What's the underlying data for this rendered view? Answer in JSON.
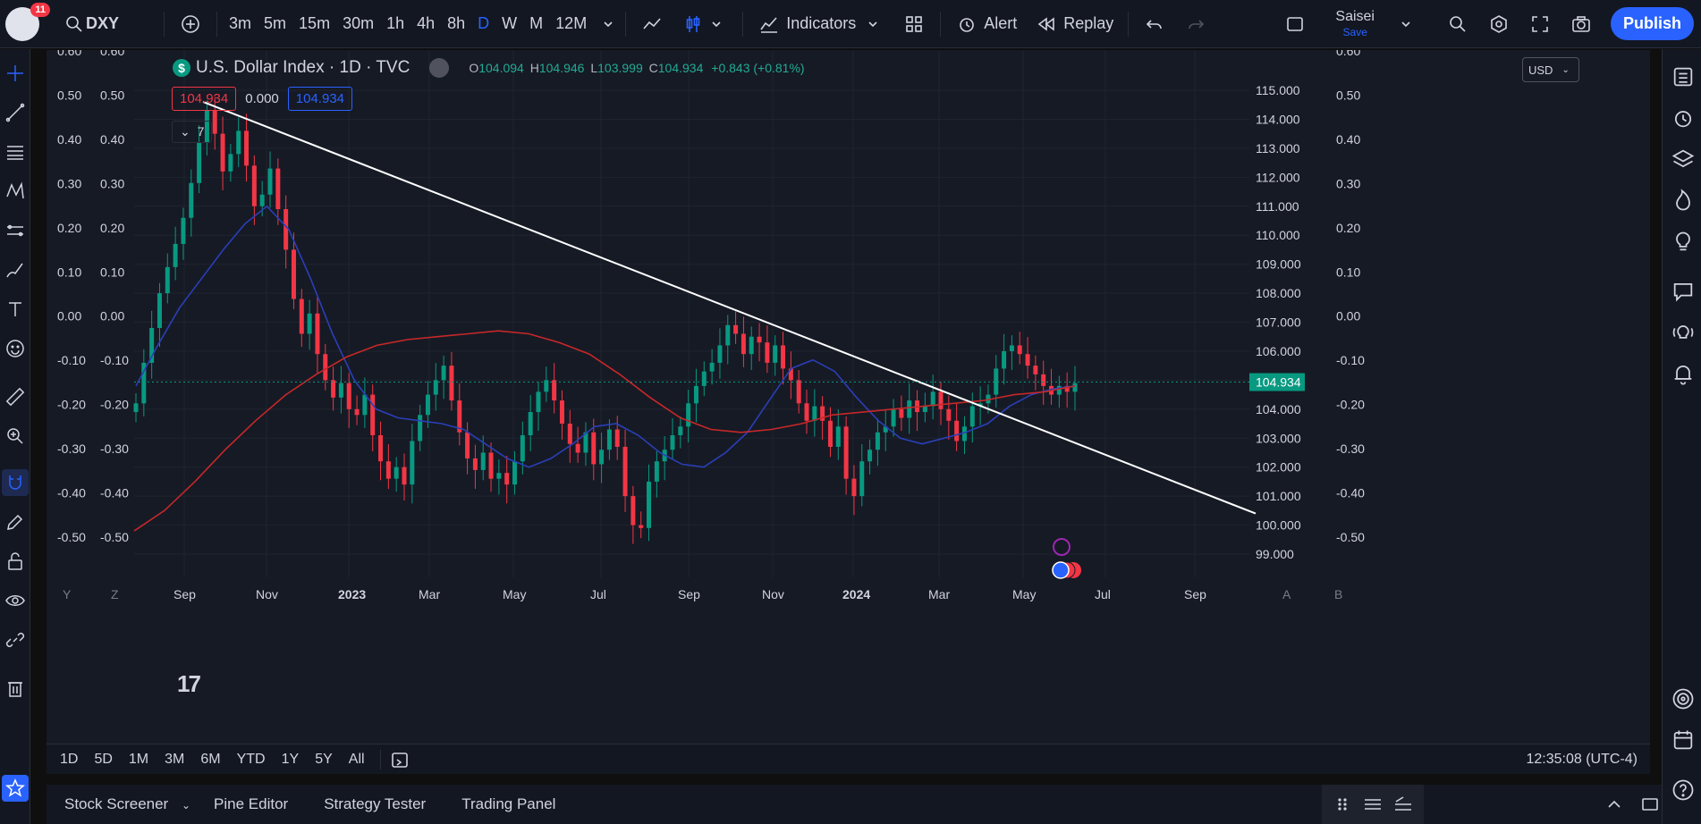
{
  "toolbar": {
    "notifications": "11",
    "symbol": "DXY",
    "timeframes": [
      "3m",
      "5m",
      "15m",
      "30m",
      "1h",
      "4h",
      "8h",
      "D",
      "W",
      "M",
      "12M"
    ],
    "active_timeframe": "D",
    "indicators_label": "Indicators",
    "alert_label": "Alert",
    "replay_label": "Replay",
    "layout_name": "Saisei",
    "layout_save": "Save",
    "publish_label": "Publish"
  },
  "legend": {
    "badge": "$",
    "title": "U.S. Dollar Index · 1D · TVC",
    "o_label": "O",
    "o": "104.094",
    "h_label": "H",
    "h": "104.946",
    "l_label": "L",
    "l": "103.999",
    "c_label": "C",
    "c": "104.934",
    "change": "+0.843 (+0.81%)"
  },
  "price_boxes": {
    "left": "104.934",
    "mid": "0.000",
    "right": "104.934"
  },
  "collapse_label": "7",
  "currency": "USD",
  "last_price": "104.934",
  "chart_data": {
    "type": "candlestick",
    "symbol": "DXY",
    "title": "U.S. Dollar Index · 1D · TVC",
    "price_axis": {
      "ticks": [
        "115.000",
        "114.000",
        "113.000",
        "112.000",
        "111.000",
        "110.000",
        "109.000",
        "108.000",
        "107.000",
        "106.000",
        "105.000",
        "104.000",
        "103.000",
        "102.000",
        "101.000",
        "100.000",
        "99.000"
      ],
      "min": 98.5,
      "max": 116.2
    },
    "oscillator_axis": {
      "ticks": [
        "0.60",
        "0.50",
        "0.40",
        "0.30",
        "0.20",
        "0.10",
        "0.00",
        "-0.10",
        "-0.20",
        "-0.30",
        "-0.40",
        "-0.50"
      ]
    },
    "time_axis": {
      "labels": [
        "Y",
        "Z",
        "Sep",
        "Nov",
        "2023",
        "Mar",
        "May",
        "Jul",
        "Sep",
        "Nov",
        "2024",
        "Mar",
        "May",
        "Jul",
        "Sep",
        "A",
        "B"
      ]
    },
    "series_closes": [
      104.2,
      105.6,
      106.8,
      108.0,
      108.9,
      109.7,
      110.6,
      111.8,
      113.2,
      114.3,
      113.5,
      112.2,
      112.8,
      113.6,
      112.4,
      111.0,
      111.4,
      112.3,
      110.9,
      109.5,
      107.8,
      106.6,
      107.3,
      105.9,
      105.0,
      104.4,
      104.9,
      104.0,
      103.8,
      104.5,
      103.1,
      102.2,
      101.6,
      102.0,
      101.4,
      102.9,
      103.8,
      104.5,
      105.0,
      105.5,
      104.3,
      103.2,
      102.3,
      101.9,
      102.5,
      101.6,
      101.8,
      101.4,
      102.2,
      103.1,
      103.9,
      104.6,
      105.0,
      104.3,
      103.5,
      102.8,
      102.5,
      103.2,
      102.1,
      102.6,
      103.3,
      102.7,
      101.0,
      100.0,
      99.9,
      101.5,
      102.2,
      102.6,
      103.1,
      103.4,
      104.2,
      104.8,
      105.3,
      105.6,
      106.2,
      106.9,
      106.6,
      105.9,
      106.5,
      106.3,
      105.6,
      106.2,
      105.4,
      105.0,
      104.2,
      103.6,
      104.1,
      103.6,
      102.7,
      103.4,
      101.6,
      101.0,
      102.2,
      102.6,
      103.2,
      103.4,
      104.0,
      103.7,
      104.3,
      103.9,
      104.1,
      104.6,
      104.0,
      103.6,
      102.9,
      103.4,
      104.1,
      104.2,
      104.5,
      105.4,
      106.0,
      106.2,
      105.9,
      105.5,
      105.2,
      104.8,
      104.5,
      104.8,
      104.6,
      104.9
    ],
    "series_ma_fast": [
      104.8,
      106.2,
      107.5,
      108.5,
      109.5,
      110.4,
      111.0,
      110.2,
      108.5,
      106.6,
      105.0,
      104.0,
      103.7,
      103.6,
      103.5,
      103.3,
      102.8,
      102.3,
      102.0,
      102.3,
      102.8,
      103.4,
      103.5,
      103.1,
      102.5,
      102.1,
      102.0,
      102.5,
      103.2,
      104.3,
      105.4,
      105.7,
      105.3,
      104.4,
      103.6,
      103.0,
      102.8,
      103.0,
      103.2,
      103.5,
      104.1,
      104.5,
      104.7,
      104.8
    ],
    "series_ma_slow": [
      99.8,
      100.5,
      101.5,
      102.6,
      103.6,
      104.5,
      105.2,
      105.8,
      106.2,
      106.4,
      106.5,
      106.6,
      106.7,
      106.6,
      106.3,
      105.9,
      105.2,
      104.4,
      103.7,
      103.3,
      103.2,
      103.3,
      103.5,
      103.8,
      103.9,
      104.0,
      104.1,
      104.2,
      104.3,
      104.5,
      104.6,
      104.8
    ],
    "trendline": {
      "from": [
        114.6,
        "2022-09"
      ],
      "to": [
        100.4,
        "2024-09"
      ]
    },
    "last": 104.934
  },
  "range": {
    "buttons": [
      "1D",
      "5D",
      "1M",
      "3M",
      "6M",
      "YTD",
      "1Y",
      "5Y",
      "All"
    ],
    "clock": "12:35:08 (UTC-4)"
  },
  "bottom": {
    "tabs": [
      "Stock Screener",
      "Pine Editor",
      "Strategy Tester",
      "Trading Panel"
    ]
  }
}
